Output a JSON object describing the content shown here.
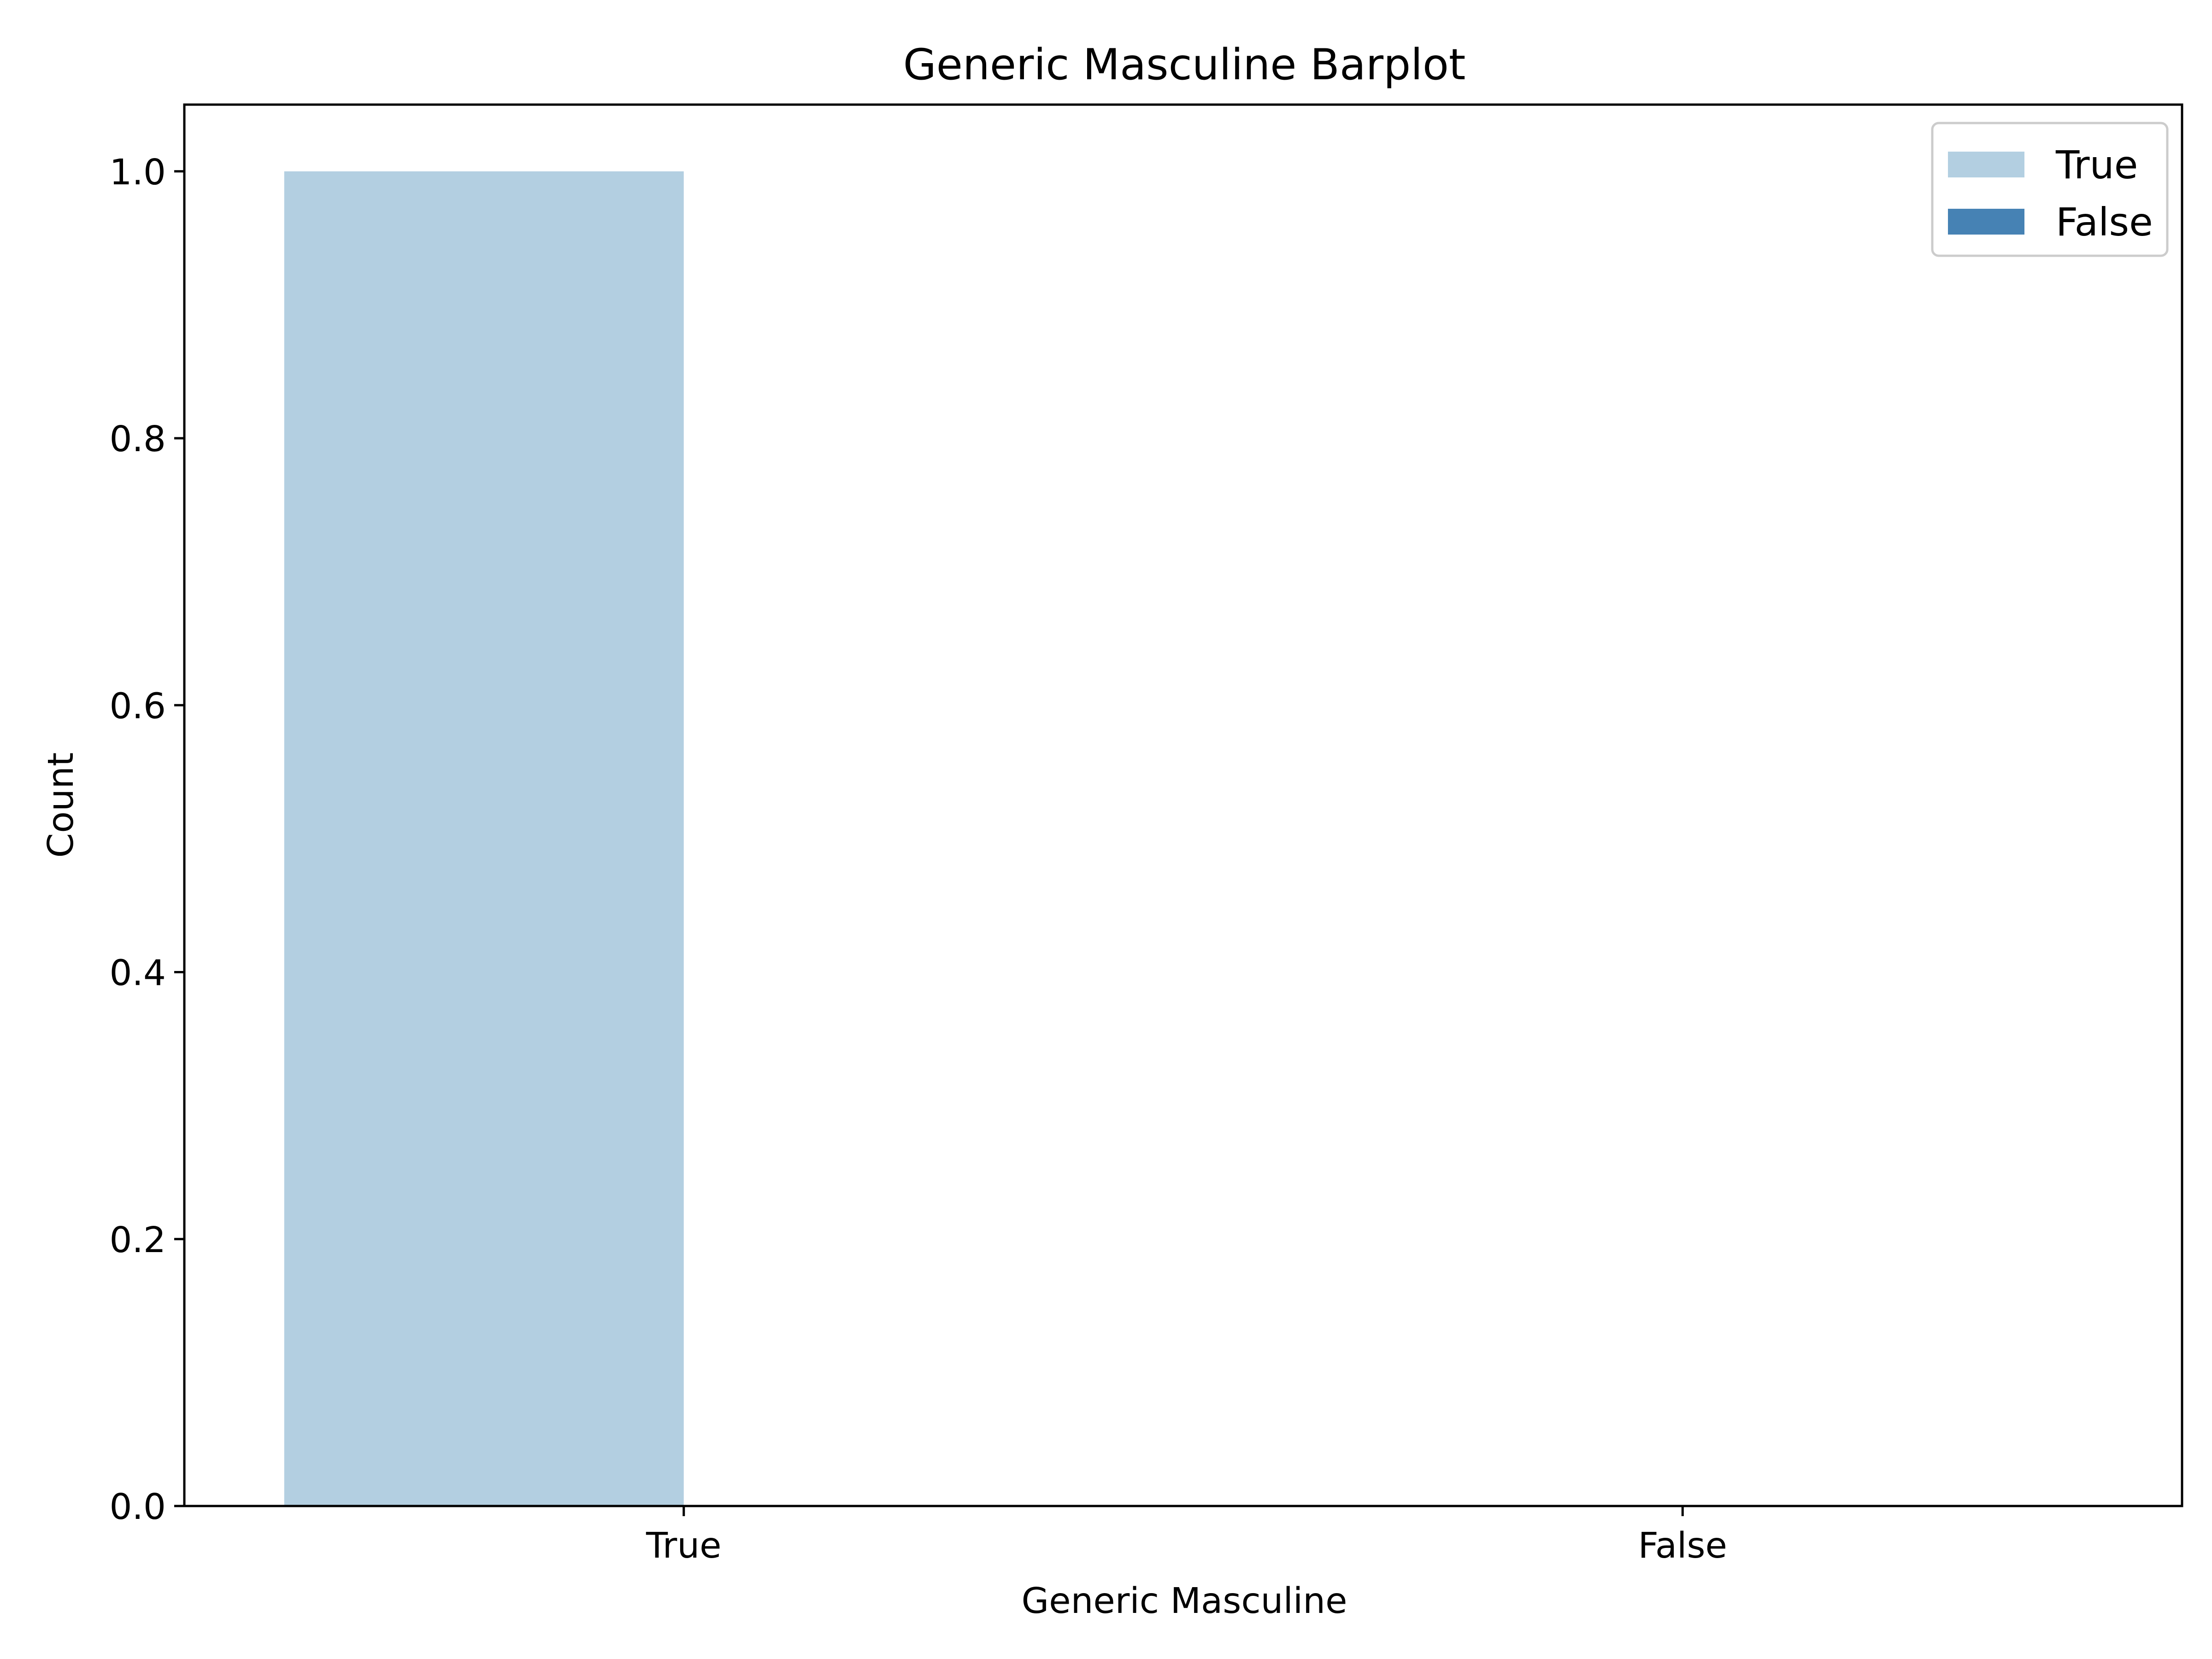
{
  "chart_data": {
    "type": "bar",
    "title": "Generic Masculine Barplot",
    "xlabel": "Generic Masculine",
    "ylabel": "Count",
    "categories": [
      "True",
      "False"
    ],
    "series": [
      {
        "name": "True",
        "values": [
          1,
          0
        ],
        "color": "#b3cfe1"
      },
      {
        "name": "False",
        "values": [
          0,
          0
        ],
        "color": "#4682b4"
      }
    ],
    "ylim": [
      0,
      1.05
    ],
    "yticks": [
      0.0,
      0.2,
      0.4,
      0.6,
      0.8,
      1.0
    ],
    "ytick_labels": [
      "0.0",
      "0.2",
      "0.4",
      "0.6",
      "0.8",
      "1.0"
    ],
    "grid": false,
    "legend": {
      "position": "top-right",
      "entries": [
        {
          "label": "True",
          "color": "#b3cfe1"
        },
        {
          "label": "False",
          "color": "#4682b4"
        }
      ]
    }
  }
}
